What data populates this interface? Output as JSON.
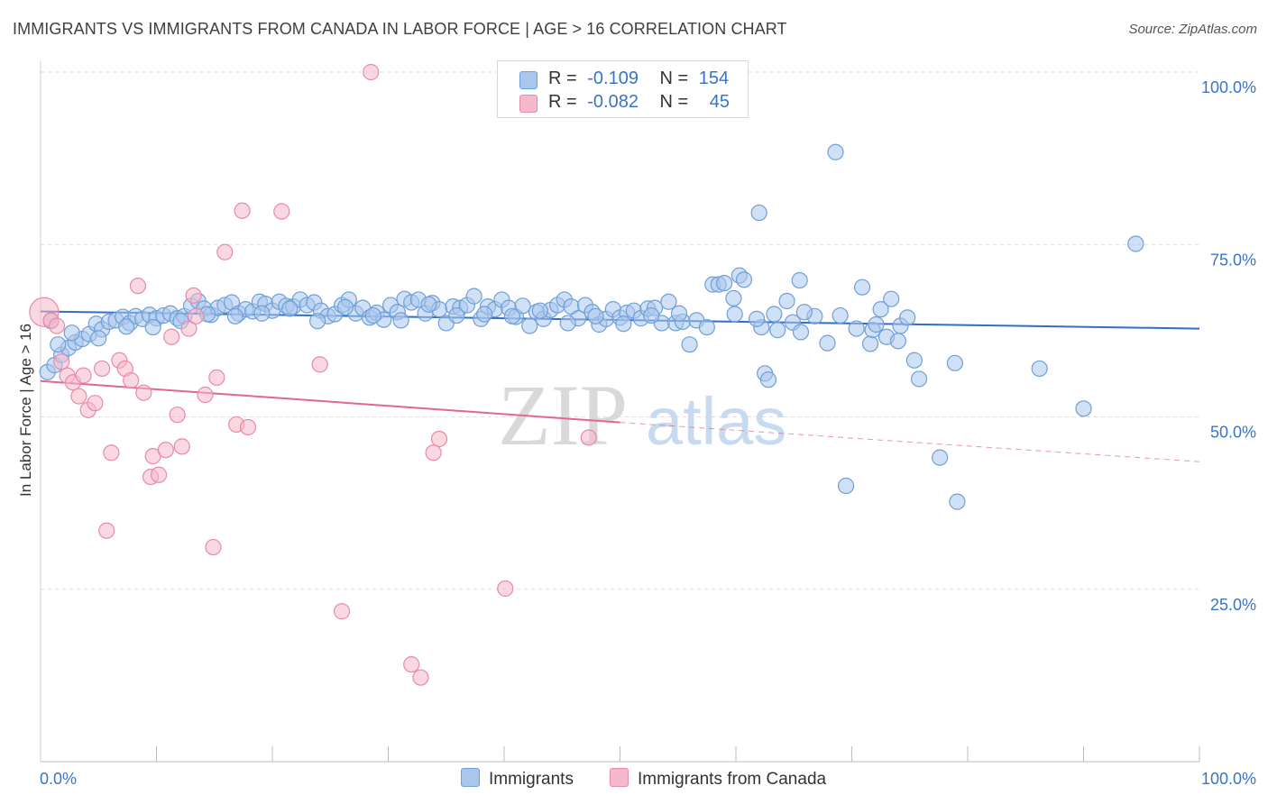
{
  "title": "IMMIGRANTS VS IMMIGRANTS FROM CANADA IN LABOR FORCE | AGE > 16 CORRELATION CHART",
  "source": "Source: ZipAtlas.com",
  "watermark": {
    "zip": "ZIP",
    "atlas": "atlas"
  },
  "legend_top": [
    {
      "r_label": "R =",
      "r_value": "-0.109",
      "n_label": "N =",
      "n_value": "154"
    },
    {
      "r_label": "R =",
      "r_value": "-0.082",
      "n_label": "N =",
      "n_value": "45"
    }
  ],
  "legend_bottom": [
    "Immigrants",
    "Immigrants from Canada"
  ],
  "colors": {
    "blue_fill": "#a9c7ec",
    "blue_stroke": "#6f9fd8",
    "blue_line": "#2f6fc4",
    "pink_fill": "#f6b8cb",
    "pink_stroke": "#e88aa8",
    "pink_line": "#e06890",
    "axis_text": "#3a74c6",
    "grid": "#dcdcdc"
  },
  "chart_data": {
    "type": "scatter",
    "title": "IMMIGRANTS VS IMMIGRANTS FROM CANADA IN LABOR FORCE | AGE > 16 CORRELATION CHART",
    "xlabel": "",
    "ylabel": "In Labor Force | Age > 16",
    "xlim": [
      0,
      100
    ],
    "ylim": [
      0,
      100
    ],
    "x_tick_labels": [
      "0.0%",
      "100.0%"
    ],
    "y_tick_labels": [
      "25.0%",
      "50.0%",
      "75.0%",
      "100.0%"
    ],
    "y_ticks": [
      25,
      50,
      75,
      100
    ],
    "grid": true,
    "series": [
      {
        "name": "Immigrants",
        "r": -0.109,
        "n": 154,
        "trend": {
          "x0": 0,
          "y0": 65.3,
          "x1": 100,
          "y1": 62.8
        },
        "points": [
          [
            0.6,
            56.5
          ],
          [
            1.2,
            57.5
          ],
          [
            1.8,
            59.0
          ],
          [
            2.4,
            60.0
          ],
          [
            3.0,
            60.8
          ],
          [
            3.6,
            61.3
          ],
          [
            4.2,
            62.0
          ],
          [
            4.8,
            63.5
          ],
          [
            5.3,
            62.7
          ],
          [
            5.9,
            63.8
          ],
          [
            6.5,
            64.0
          ],
          [
            7.1,
            64.5
          ],
          [
            7.7,
            63.6
          ],
          [
            8.2,
            64.6
          ],
          [
            8.8,
            64.2
          ],
          [
            9.4,
            64.8
          ],
          [
            10.0,
            64.3
          ],
          [
            10.6,
            64.7
          ],
          [
            11.2,
            65.0
          ],
          [
            11.8,
            64.3
          ],
          [
            12.4,
            64.6
          ],
          [
            13.0,
            66.1
          ],
          [
            13.6,
            66.8
          ],
          [
            14.1,
            65.7
          ],
          [
            14.7,
            64.8
          ],
          [
            15.3,
            65.8
          ],
          [
            15.9,
            66.2
          ],
          [
            16.5,
            66.6
          ],
          [
            17.1,
            65.0
          ],
          [
            17.7,
            65.6
          ],
          [
            18.3,
            65.3
          ],
          [
            18.9,
            66.7
          ],
          [
            19.4,
            66.4
          ],
          [
            20.0,
            65.4
          ],
          [
            20.6,
            66.7
          ],
          [
            21.2,
            66.1
          ],
          [
            21.8,
            66.0
          ],
          [
            22.4,
            67.0
          ],
          [
            23.0,
            66.2
          ],
          [
            23.6,
            66.6
          ],
          [
            24.2,
            65.4
          ],
          [
            24.8,
            64.6
          ],
          [
            25.4,
            64.9
          ],
          [
            26.0,
            66.2
          ],
          [
            26.6,
            67.0
          ],
          [
            27.2,
            65.0
          ],
          [
            27.8,
            65.8
          ],
          [
            28.4,
            64.4
          ],
          [
            29.0,
            65.1
          ],
          [
            29.6,
            64.1
          ],
          [
            30.2,
            66.2
          ],
          [
            30.8,
            65.2
          ],
          [
            31.4,
            67.1
          ],
          [
            32.0,
            66.6
          ],
          [
            32.6,
            67.0
          ],
          [
            33.2,
            65.0
          ],
          [
            33.8,
            66.5
          ],
          [
            34.4,
            65.6
          ],
          [
            35.0,
            63.6
          ],
          [
            35.6,
            66.0
          ],
          [
            36.2,
            65.8
          ],
          [
            36.8,
            66.2
          ],
          [
            37.4,
            67.5
          ],
          [
            38.0,
            64.2
          ],
          [
            38.6,
            66.0
          ],
          [
            39.2,
            65.6
          ],
          [
            39.8,
            67.0
          ],
          [
            40.4,
            65.8
          ],
          [
            41.0,
            64.5
          ],
          [
            41.6,
            66.1
          ],
          [
            42.2,
            63.2
          ],
          [
            42.8,
            65.2
          ],
          [
            43.4,
            64.2
          ],
          [
            44.0,
            65.5
          ],
          [
            44.6,
            66.2
          ],
          [
            45.2,
            67.0
          ],
          [
            45.8,
            66.0
          ],
          [
            46.4,
            64.3
          ],
          [
            47.0,
            66.2
          ],
          [
            47.6,
            65.2
          ],
          [
            48.2,
            63.4
          ],
          [
            48.8,
            64.2
          ],
          [
            49.4,
            65.6
          ],
          [
            50.0,
            64.4
          ],
          [
            50.6,
            65.1
          ],
          [
            51.2,
            65.4
          ],
          [
            51.8,
            64.3
          ],
          [
            52.4,
            65.7
          ],
          [
            53.0,
            65.8
          ],
          [
            53.6,
            63.6
          ],
          [
            54.2,
            66.7
          ],
          [
            54.8,
            63.6
          ],
          [
            55.4,
            63.8
          ],
          [
            56.0,
            60.5
          ],
          [
            56.6,
            64.0
          ],
          [
            58.0,
            69.2
          ],
          [
            58.5,
            69.2
          ],
          [
            59.0,
            69.4
          ],
          [
            59.8,
            67.2
          ],
          [
            60.3,
            70.5
          ],
          [
            60.7,
            69.9
          ],
          [
            62.2,
            63.0
          ],
          [
            62.5,
            56.3
          ],
          [
            62.8,
            55.4
          ],
          [
            63.6,
            62.6
          ],
          [
            64.4,
            66.8
          ],
          [
            64.9,
            63.7
          ],
          [
            65.5,
            69.8
          ],
          [
            65.6,
            62.3
          ],
          [
            66.8,
            64.6
          ],
          [
            67.9,
            60.7
          ],
          [
            68.6,
            88.4
          ],
          [
            69.5,
            40.0
          ],
          [
            70.4,
            62.8
          ],
          [
            70.9,
            68.8
          ],
          [
            71.6,
            60.6
          ],
          [
            71.8,
            62.6
          ],
          [
            72.1,
            63.4
          ],
          [
            73.0,
            61.6
          ],
          [
            73.4,
            67.1
          ],
          [
            74.0,
            61.0
          ],
          [
            74.2,
            63.2
          ],
          [
            74.8,
            64.4
          ],
          [
            75.4,
            58.2
          ],
          [
            75.8,
            55.5
          ],
          [
            77.6,
            44.1
          ],
          [
            78.9,
            57.8
          ],
          [
            79.1,
            37.7
          ],
          [
            62.0,
            79.6
          ],
          [
            86.2,
            57.0
          ],
          [
            90.0,
            51.2
          ],
          [
            94.5,
            75.1
          ],
          [
            0.9,
            63.9
          ],
          [
            1.5,
            60.5
          ],
          [
            2.7,
            62.2
          ],
          [
            5.0,
            61.4
          ],
          [
            7.4,
            63.1
          ],
          [
            9.7,
            63.0
          ],
          [
            12.1,
            63.9
          ],
          [
            14.4,
            64.9
          ],
          [
            16.8,
            64.6
          ],
          [
            19.1,
            65.0
          ],
          [
            21.5,
            65.7
          ],
          [
            23.9,
            63.9
          ],
          [
            26.3,
            65.9
          ],
          [
            28.7,
            64.7
          ],
          [
            31.1,
            64.0
          ],
          [
            33.5,
            66.3
          ],
          [
            35.9,
            64.7
          ],
          [
            38.3,
            64.9
          ],
          [
            40.7,
            64.6
          ],
          [
            43.1,
            65.4
          ],
          [
            45.5,
            63.6
          ],
          [
            47.9,
            64.6
          ],
          [
            50.3,
            63.5
          ],
          [
            52.7,
            64.7
          ],
          [
            55.1,
            65.0
          ],
          [
            57.5,
            63.0
          ],
          [
            59.9,
            64.9
          ],
          [
            61.8,
            64.2
          ],
          [
            63.3,
            64.9
          ],
          [
            65.9,
            65.2
          ],
          [
            69.0,
            64.7
          ],
          [
            72.5,
            65.6
          ]
        ]
      },
      {
        "name": "Immigrants from Canada",
        "r": -0.082,
        "n": 45,
        "trend": {
          "x0": 0,
          "y0": 55.2,
          "x1": 50,
          "y1": 49.2,
          "dash_x1": 100,
          "dash_y1": 43.5
        },
        "points": [
          [
            0.3,
            65.2
          ],
          [
            0.9,
            64.0
          ],
          [
            1.4,
            63.2
          ],
          [
            1.8,
            58.0
          ],
          [
            2.3,
            56.0
          ],
          [
            2.8,
            55.0
          ],
          [
            3.3,
            53.0
          ],
          [
            3.7,
            56.0
          ],
          [
            4.1,
            51.0
          ],
          [
            4.7,
            52.0
          ],
          [
            5.3,
            57.0
          ],
          [
            5.7,
            33.5
          ],
          [
            6.1,
            44.8
          ],
          [
            6.8,
            58.2
          ],
          [
            7.3,
            57.0
          ],
          [
            7.8,
            55.3
          ],
          [
            8.4,
            69.0
          ],
          [
            8.9,
            53.5
          ],
          [
            9.5,
            41.3
          ],
          [
            9.7,
            44.3
          ],
          [
            10.2,
            41.6
          ],
          [
            10.8,
            45.2
          ],
          [
            11.3,
            61.6
          ],
          [
            11.8,
            50.3
          ],
          [
            12.2,
            45.7
          ],
          [
            12.8,
            62.8
          ],
          [
            13.2,
            67.6
          ],
          [
            13.4,
            64.6
          ],
          [
            14.2,
            53.2
          ],
          [
            14.9,
            31.1
          ],
          [
            15.2,
            55.7
          ],
          [
            15.9,
            73.9
          ],
          [
            16.9,
            48.9
          ],
          [
            17.4,
            79.9
          ],
          [
            17.9,
            48.5
          ],
          [
            20.8,
            79.8
          ],
          [
            24.1,
            57.6
          ],
          [
            26.0,
            21.8
          ],
          [
            28.5,
            100.0
          ],
          [
            32.0,
            14.1
          ],
          [
            32.8,
            12.2
          ],
          [
            33.9,
            44.8
          ],
          [
            34.4,
            46.8
          ],
          [
            40.1,
            25.1
          ],
          [
            47.3,
            47.0
          ]
        ]
      }
    ]
  }
}
